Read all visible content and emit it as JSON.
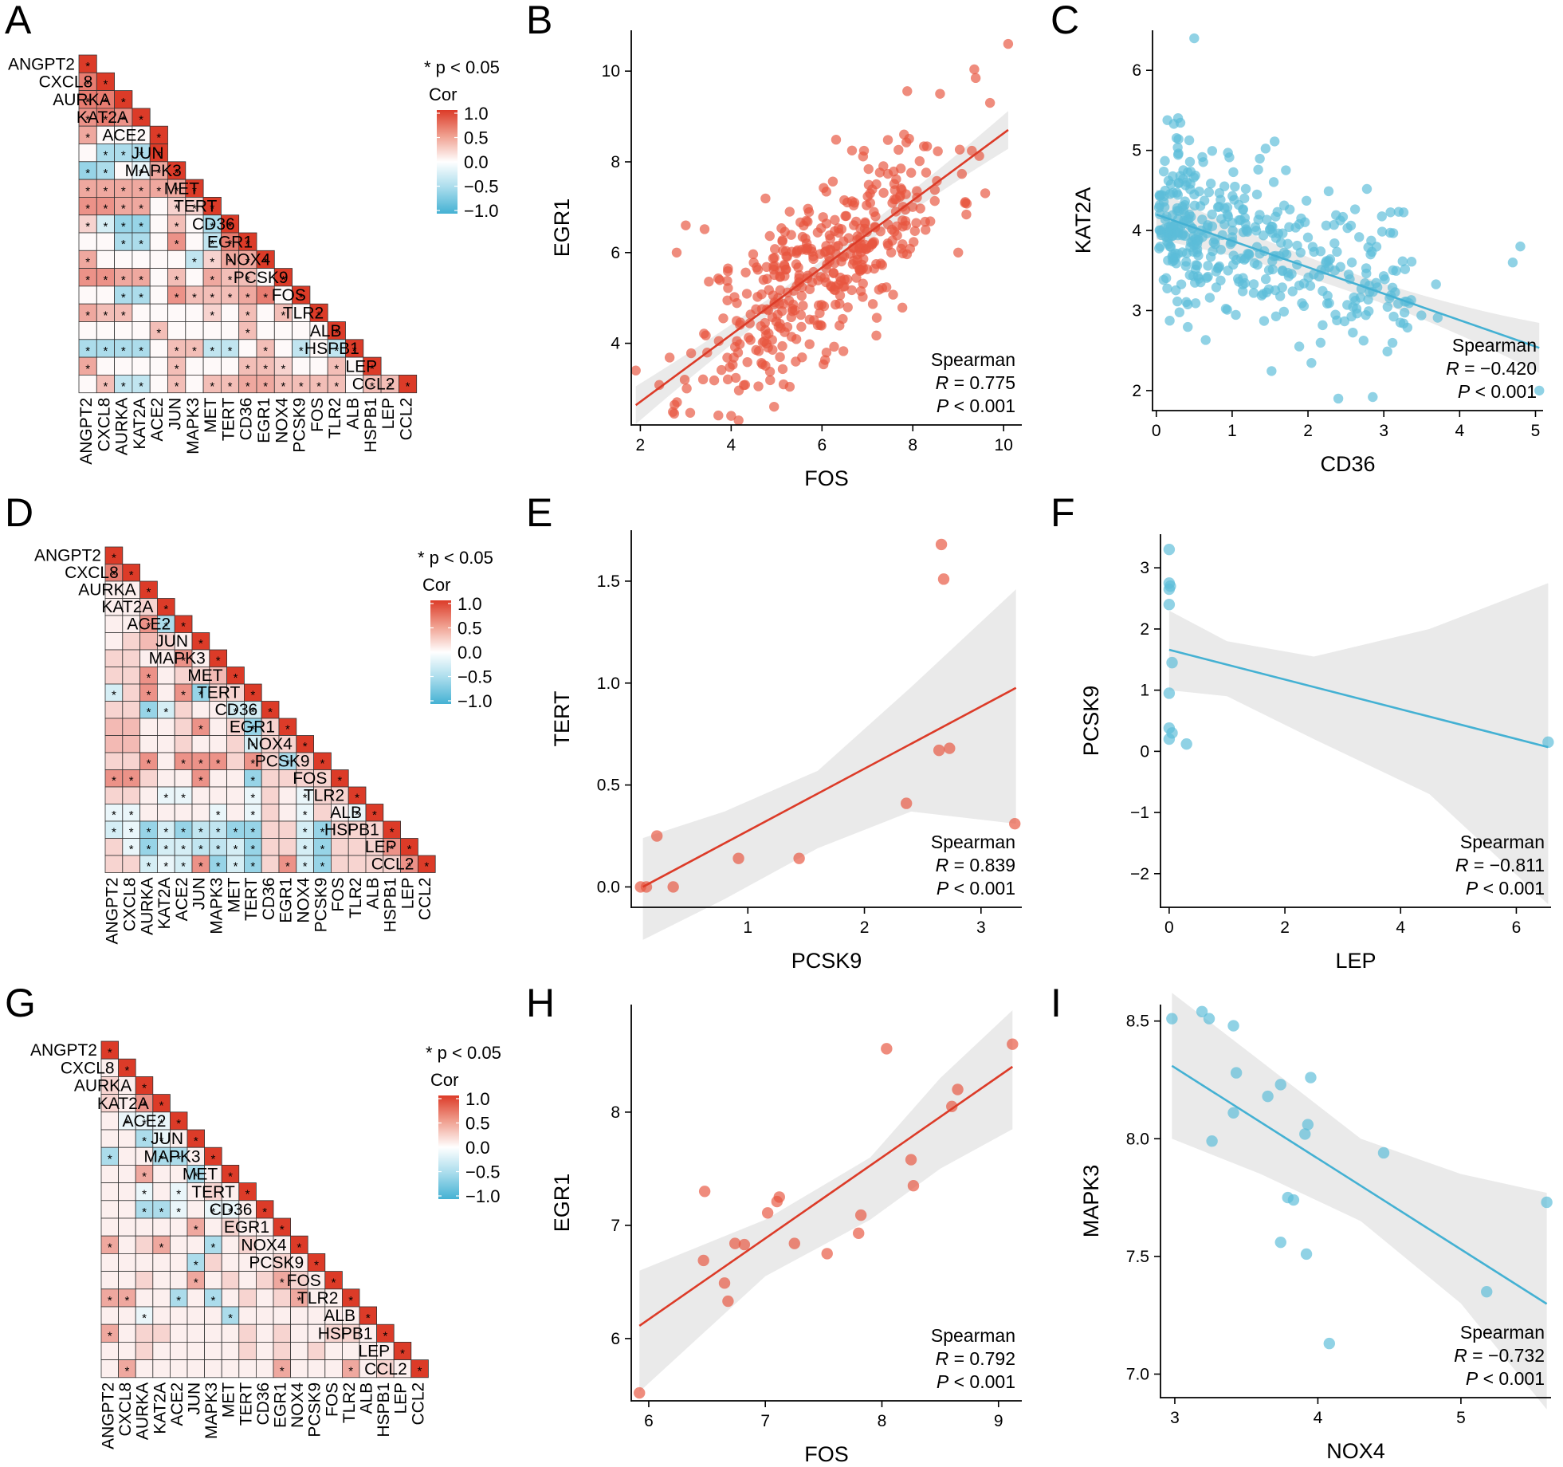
{
  "colors": {
    "pos": "#dc3b28",
    "neg": "#44b1d3",
    "ci": "#e6e6e6",
    "scatter_red": "#e8553f",
    "scatter_blue": "#5bbcd8"
  },
  "chart_data": [
    {
      "panel": "A",
      "type": "heatmap",
      "genes": [
        "ANGPT2",
        "CXCL8",
        "AURKA",
        "KAT2A",
        "ACE2",
        "JUN",
        "MAPK3",
        "MET",
        "TERT",
        "CD36",
        "EGR1",
        "NOX4",
        "PCSK9",
        "FOS",
        "TLR2",
        "ALB",
        "HSPB1",
        "LEP",
        "CCL2"
      ],
      "legend": {
        "sig": "* p < 0.05",
        "title": "Cor",
        "ticks": [
          "1.0",
          "0.5",
          "0.0",
          "−0.5",
          "−1.0"
        ]
      },
      "rows": [
        "9",
        "+6 9",
        "+6 +6 9",
        "+5 +6 +5 9",
        "+4 0 0 0 9",
        "0 -4 -4 -4 9",
        "-5 -4 0 -1 +4 9",
        "+4 +4 +4 +4 +4 +4 9",
        "+5 +5 +4 +4 0 +2 +2 9",
        "+2 -2 -5 -5 0 +3 0 -4 9",
        "0 0 -4 -4 0 +5 0 -3 +6 9",
        "+4 0 0 0 0 0 -3 +2 +4 +4 9",
        "+5 +5 +4 +4 0 +3 0 +4 +3 +3 0 9",
        "0 0 -4 -4 0 +5 +3 +3 +3 +4 +6 0 9",
        "+4 +3 +3 0 0 0 0 +2 0 +3 0 +3 0 9",
        "0 0 0 0 +3 0 0 0 0 +3 0 0 0 0 9",
        "-4 -4 -4 -4 0 +3 +3 -3 -3 0 +3 0 -3 0 -3 9",
        "+4 0 0 0 0 +3 0 0 0 +3 +3 +2 0 0 +3 0 9",
        "0 +3 -3 -3 0 +3 0 +3 +3 +4 +4 +3 +3 +3 +3 0 +3 +3 9"
      ]
    },
    {
      "panel": "D",
      "type": "heatmap",
      "genes": [
        "ANGPT2",
        "CXCL8",
        "AURKA",
        "KAT2A",
        "ACE2",
        "JUN",
        "MAPK3",
        "MET",
        "TERT",
        "CD36",
        "EGR1",
        "NOX4",
        "PCSK9",
        "FOS",
        "TLR2",
        "ALB",
        "HSPB1",
        "LEP",
        "CCL2"
      ],
      "legend": {
        "sig": "* p < 0.05",
        "title": "Cor",
        "ticks": [
          "1.0",
          "0.5",
          "0.0",
          "−0.5",
          "−1.0"
        ]
      },
      "rows": [
        "9",
        "+6 9",
        "1 1 9",
        "1 1 2 9",
        "1 1 +5 -4 9",
        "1 2 3 2 1 9",
        "2 2 1 1 +5 1 9",
        "2 2 +5 1 2 2 3 9",
        "-2 2 +5 1 +5 -5 2 2 9",
        "2 2 -5 -2 2 1 1 -2 -2 9",
        "3 3 1 1 2 +5 1 2 -5 2 9",
        "3 3 1 1 2 1 1 2 -2 2 2 9",
        "2 2 +5 1 +5 +5 +5 2 +5 2 -4 2 9",
        "+5 +5 2 1 1 +5 1 1 -5 2 2 2 2 9",
        "2 2 1 -1 -1 1 1 1 -1 2 1 -1 2 2 9",
        "-1 -1 1 1 1 1 -1 1 -1 2 1 -1 2 1 -1 9",
        "-2 -1 -5 -2 -5 -3 -3 -5 -5 2 2 -2 -5 2 2 2 9",
        "2 -1 -5 -2 -2 -3 -3 -2 -5 2 2 -2 -5 2 2 2 +5 9",
        "2 2 -2 -1 -2 +5 -5 -2 -5 2 +5 -2 -5 2 2 2 2 +5 9"
      ]
    },
    {
      "panel": "G",
      "type": "heatmap",
      "genes": [
        "ANGPT2",
        "CXCL8",
        "AURKA",
        "KAT2A",
        "ACE2",
        "JUN",
        "MAPK3",
        "MET",
        "TERT",
        "CD36",
        "EGR1",
        "NOX4",
        "PCSK9",
        "FOS",
        "TLR2",
        "ALB",
        "HSPB1",
        "LEP",
        "CCL2"
      ],
      "legend": {
        "sig": "* p < 0.05",
        "title": "Cor",
        "ticks": [
          "1.0",
          "0.5",
          "0.0",
          "−0.5",
          "−1.0"
        ]
      },
      "rows": [
        "9",
        "1 9",
        "2 1 9",
        "2 1 +5 9",
        "1 -1 -1 -1 9",
        "1 1 -4 -1 1 9",
        "-4 1 1 -4 -4 1 9",
        "1 1 +4 1 1 -4 1 9",
        "1 1 -1 1 -1 1 2 1 9",
        "1 1 -4 -4 -1 1 -1 -1 1 9",
        "1 1 1 1 1 +4 1 2 1 1 9",
        "+4 1 2 +4 1 1 -4 1 2 1 1 9",
        "1 1 1 1 1 -4 2 1 1 1 2 1 9",
        "1 1 2 1 1 +4 1 2 1 2 +4 2 1 9",
        "+4 +4 1 1 -4 1 -4 1 2 1 2 +4 1 1 9",
        "1 1 -1 1 1 1 1 -4 1 1 1 1 1 1 1 9",
        "+4 1 2 2 1 1 1 1 2 1 2 1 1 2 2 1 9",
        "1 1 2 1 1 1 1 1 2 1 2 1 2 1 1 1 1 9",
        "1 +4 1 1 1 1 1 1 1 1 +4 1 1 1 +4 1 2 1 9"
      ]
    },
    {
      "panel": "B",
      "type": "scatter",
      "color": "red",
      "n": 420,
      "seed": 11,
      "xlabel": "FOS",
      "ylabel": "EGR1",
      "xlim": [
        1.8,
        10.4
      ],
      "ylim": [
        2.2,
        10.9
      ],
      "xticks": [
        2,
        4,
        6,
        8,
        10
      ],
      "yticks": [
        4,
        6,
        8,
        10
      ],
      "fit": {
        "slope": 0.74,
        "intercept": 1.23,
        "x0": 1.9,
        "x1": 10.1
      },
      "ci_half": 0.16,
      "cloud": {
        "mx": 6.0,
        "sx": 1.45,
        "noise": 0.95,
        "xmin": 2.0,
        "xmax": 9.9,
        "ymin": 2.3,
        "ymax": 10.2
      },
      "points": [
        [
          1.9,
          3.4
        ],
        [
          2.8,
          6.0
        ],
        [
          3.0,
          6.6
        ],
        [
          10.1,
          10.6
        ],
        [
          9.7,
          9.3
        ],
        [
          4.0,
          2.4
        ],
        [
          8.6,
          9.5
        ],
        [
          9.0,
          6.0
        ]
      ],
      "stats": {
        "method": "Spearman",
        "r_label": "R",
        "r": "= 0.775",
        "p_label": "P",
        "p": "< 0.001"
      }
    },
    {
      "panel": "C",
      "type": "scatter",
      "color": "blue",
      "n": 420,
      "seed": 23,
      "xlabel": "CD36",
      "ylabel": "KAT2A",
      "xlim": [
        -0.05,
        5.1
      ],
      "ylim": [
        1.75,
        6.5
      ],
      "xticks": [
        0,
        1,
        2,
        3,
        4,
        5
      ],
      "yticks": [
        2,
        3,
        4,
        5,
        6
      ],
      "fit": {
        "slope": -0.33,
        "intercept": 4.2,
        "x0": 0.0,
        "x1": 5.05
      },
      "ci_half": 0.12,
      "cloud": {
        "skew": 0.9,
        "noise": 0.5,
        "xmin": 0.02,
        "xmax": 4.9,
        "ymin": 1.9,
        "ymax": 6.0
      },
      "points": [
        [
          0.5,
          6.4
        ],
        [
          4.8,
          3.8
        ],
        [
          4.7,
          3.6
        ],
        [
          5.05,
          2.0
        ],
        [
          2.4,
          1.9
        ],
        [
          0.05,
          4.0
        ]
      ],
      "stats": {
        "method": "Spearman",
        "r_label": "R",
        "r": "= −0.420",
        "p_label": "P",
        "p": "< 0.001"
      }
    },
    {
      "panel": "E",
      "type": "scatter",
      "color": "red",
      "xlabel": "PCSK9",
      "ylabel": "TERT",
      "xlim": [
        0.0,
        3.35
      ],
      "ylim": [
        -0.1,
        1.75
      ],
      "xticks": [
        1,
        2,
        3
      ],
      "yticks": [
        0.0,
        0.5,
        1.0,
        1.5
      ],
      "ytick_fmt": 1,
      "fit": {
        "slope": 0.305,
        "intercept": -0.03,
        "x0": 0.1,
        "x1": 3.3
      },
      "ci": {
        "x": [
          0.1,
          0.8,
          1.6,
          2.4,
          3.3
        ],
        "lo": [
          -0.26,
          -0.06,
          0.19,
          0.37,
          0.31
        ],
        "hi": [
          0.24,
          0.37,
          0.57,
          0.98,
          1.46
        ]
      },
      "points": [
        [
          0.08,
          0.0
        ],
        [
          0.13,
          0.0
        ],
        [
          0.36,
          0.0
        ],
        [
          0.22,
          0.25
        ],
        [
          0.92,
          0.14
        ],
        [
          1.44,
          0.14
        ],
        [
          2.36,
          0.41
        ],
        [
          2.64,
          0.67
        ],
        [
          2.73,
          0.68
        ],
        [
          2.68,
          1.51
        ],
        [
          2.66,
          1.68
        ],
        [
          3.29,
          0.31
        ]
      ],
      "stats": {
        "method": "Spearman",
        "r_label": "R",
        "r": "= 0.839",
        "p_label": "P",
        "p": "< 0.001"
      }
    },
    {
      "panel": "F",
      "type": "scatter",
      "color": "blue",
      "xlabel": "LEP",
      "ylabel": "PCSK9",
      "xlim": [
        -0.15,
        6.6
      ],
      "ylim": [
        -2.55,
        3.55
      ],
      "xticks": [
        0,
        2,
        4,
        6
      ],
      "yticks": [
        -2,
        -1,
        0,
        1,
        2,
        3
      ],
      "fit": {
        "slope": -0.243,
        "intercept": 1.66,
        "x0": 0.0,
        "x1": 6.55
      },
      "ci": {
        "x": [
          0.0,
          1.0,
          2.5,
          4.5,
          6.55
        ],
        "lo": [
          1.0,
          0.9,
          0.2,
          -0.7,
          -2.5
        ],
        "hi": [
          2.3,
          1.8,
          1.55,
          2.0,
          2.75
        ]
      },
      "points": [
        [
          0.0,
          3.3
        ],
        [
          0.0,
          2.75
        ],
        [
          0.02,
          2.7
        ],
        [
          0.0,
          2.65
        ],
        [
          0.0,
          2.4
        ],
        [
          0.05,
          1.45
        ],
        [
          0.0,
          0.95
        ],
        [
          0.0,
          0.38
        ],
        [
          0.05,
          0.3
        ],
        [
          0.0,
          0.2
        ],
        [
          0.3,
          0.12
        ],
        [
          6.55,
          0.15
        ]
      ],
      "stats": {
        "method": "Spearman",
        "r_label": "R",
        "r": "= −0.811",
        "p_label": "P",
        "p": "< 0.001"
      }
    },
    {
      "panel": "H",
      "type": "scatter",
      "color": "red",
      "xlabel": "FOS",
      "ylabel": "EGR1",
      "xlim": [
        5.85,
        9.2
      ],
      "ylim": [
        5.45,
        8.95
      ],
      "xticks": [
        6,
        7,
        8,
        9
      ],
      "yticks": [
        6,
        7,
        8
      ],
      "fit": {
        "slope": 0.715,
        "intercept": 1.88,
        "x0": 5.92,
        "x1": 9.12
      },
      "ci": {
        "x": [
          5.92,
          7.0,
          7.9,
          8.5,
          9.12
        ],
        "lo": [
          5.53,
          6.55,
          7.05,
          7.5,
          7.85
        ],
        "hi": [
          6.6,
          7.05,
          7.6,
          8.3,
          8.9
        ]
      },
      "points": [
        [
          5.92,
          5.52
        ],
        [
          6.48,
          7.3
        ],
        [
          6.47,
          6.69
        ],
        [
          6.65,
          6.49
        ],
        [
          6.68,
          6.33
        ],
        [
          6.74,
          6.84
        ],
        [
          6.82,
          6.83
        ],
        [
          7.02,
          7.11
        ],
        [
          7.1,
          7.21
        ],
        [
          7.12,
          7.25
        ],
        [
          7.25,
          6.84
        ],
        [
          7.53,
          6.75
        ],
        [
          7.8,
          6.93
        ],
        [
          7.82,
          7.09
        ],
        [
          8.04,
          8.56
        ],
        [
          8.25,
          7.58
        ],
        [
          8.27,
          7.35
        ],
        [
          8.6,
          8.05
        ],
        [
          8.65,
          8.2
        ],
        [
          9.12,
          8.6
        ]
      ],
      "stats": {
        "method": "Spearman",
        "r_label": "R",
        "r": "= 0.792",
        "p_label": "P",
        "p": "< 0.001"
      }
    },
    {
      "panel": "I",
      "type": "scatter",
      "color": "blue",
      "xlabel": "NOX4",
      "ylabel": "MAPK3",
      "xlim": [
        2.9,
        5.63
      ],
      "ylim": [
        6.9,
        8.57
      ],
      "xticks": [
        3,
        4,
        5
      ],
      "yticks": [
        7.0,
        7.5,
        8.0,
        8.5
      ],
      "ytick_fmt": 1,
      "fit": {
        "slope": -0.386,
        "intercept": 9.46,
        "x0": 2.98,
        "x1": 5.6
      },
      "ci": {
        "x": [
          2.98,
          3.6,
          4.3,
          5.0,
          5.6
        ],
        "lo": [
          8.0,
          7.85,
          7.65,
          7.3,
          6.85
        ],
        "hi": [
          8.62,
          8.33,
          8.0,
          7.85,
          7.77
        ]
      },
      "points": [
        [
          2.98,
          8.51
        ],
        [
          3.19,
          8.54
        ],
        [
          3.24,
          8.51
        ],
        [
          3.41,
          8.48
        ],
        [
          3.43,
          8.28
        ],
        [
          3.41,
          8.11
        ],
        [
          3.26,
          7.99
        ],
        [
          3.65,
          8.18
        ],
        [
          3.74,
          8.23
        ],
        [
          3.91,
          8.02
        ],
        [
          3.93,
          8.06
        ],
        [
          3.95,
          8.26
        ],
        [
          3.79,
          7.75
        ],
        [
          3.83,
          7.74
        ],
        [
          3.74,
          7.56
        ],
        [
          3.92,
          7.51
        ],
        [
          4.46,
          7.94
        ],
        [
          4.08,
          7.13
        ],
        [
          5.18,
          7.35
        ],
        [
          5.6,
          7.73
        ]
      ],
      "stats": {
        "method": "Spearman",
        "r_label": "R",
        "r": "= −0.732",
        "p_label": "P",
        "p": "< 0.001"
      }
    }
  ],
  "panel_labels": [
    "A",
    "B",
    "C",
    "D",
    "E",
    "F",
    "G",
    "H",
    "I"
  ]
}
